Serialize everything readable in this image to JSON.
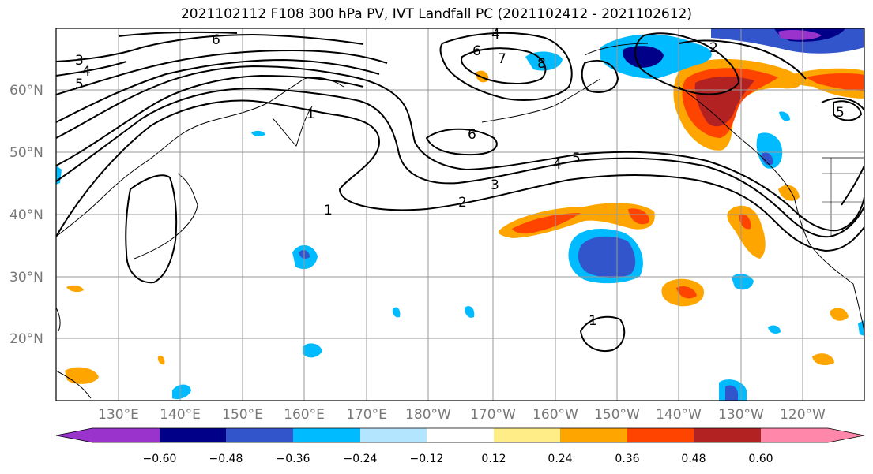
{
  "title": "2021102112 F108 300 hPa PV, IVT Landfall PC (2021102412 - 2021102612)",
  "lat_labels": [
    "60°N",
    "50°N",
    "40°N",
    "30°N",
    "20°N"
  ],
  "lon_labels": [
    "130°E",
    "140°E",
    "150°E",
    "160°E",
    "170°E",
    "180°W",
    "170°W",
    "160°W",
    "150°W",
    "140°W",
    "130°W",
    "120°W"
  ],
  "colorbar": {
    "tick_labels": [
      "−0.60",
      "−0.48",
      "−0.36",
      "−0.24",
      "−0.12",
      "0.12",
      "0.24",
      "0.36",
      "0.48",
      "0.60"
    ],
    "colors": [
      "#9933cc",
      "#000088",
      "#3355cc",
      "#00bbff",
      "#b3e5ff",
      "#ffffff",
      "#ffee88",
      "#ffa500",
      "#ff4400",
      "#b22222",
      "#ff88aa"
    ]
  },
  "contour_labels": [
    "6",
    "3",
    "4",
    "5",
    "4",
    "6",
    "7",
    "8",
    "1",
    "6",
    "5",
    "4",
    "3",
    "2",
    "1",
    "2",
    "1",
    "5"
  ],
  "colors": {
    "frame": "#000000",
    "grid": "#999999",
    "axis_text": "#777777"
  }
}
